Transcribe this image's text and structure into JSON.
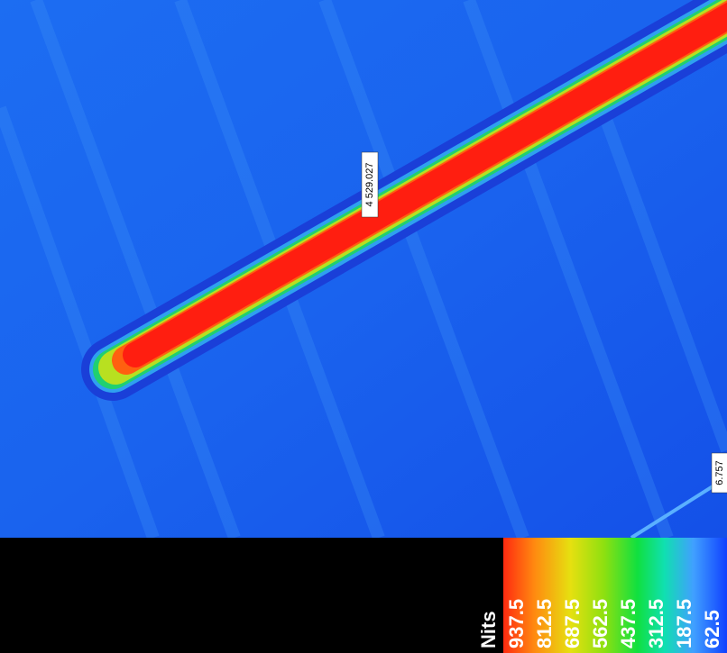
{
  "annotations": [
    {
      "label": "4 529.027"
    },
    {
      "label": "6.757"
    }
  ],
  "legend": {
    "unit": "Nits",
    "levels": [
      "937.5",
      "812.5",
      "687.5",
      "562.5",
      "437.5",
      "312.5",
      "187.5",
      "62.5"
    ]
  }
}
